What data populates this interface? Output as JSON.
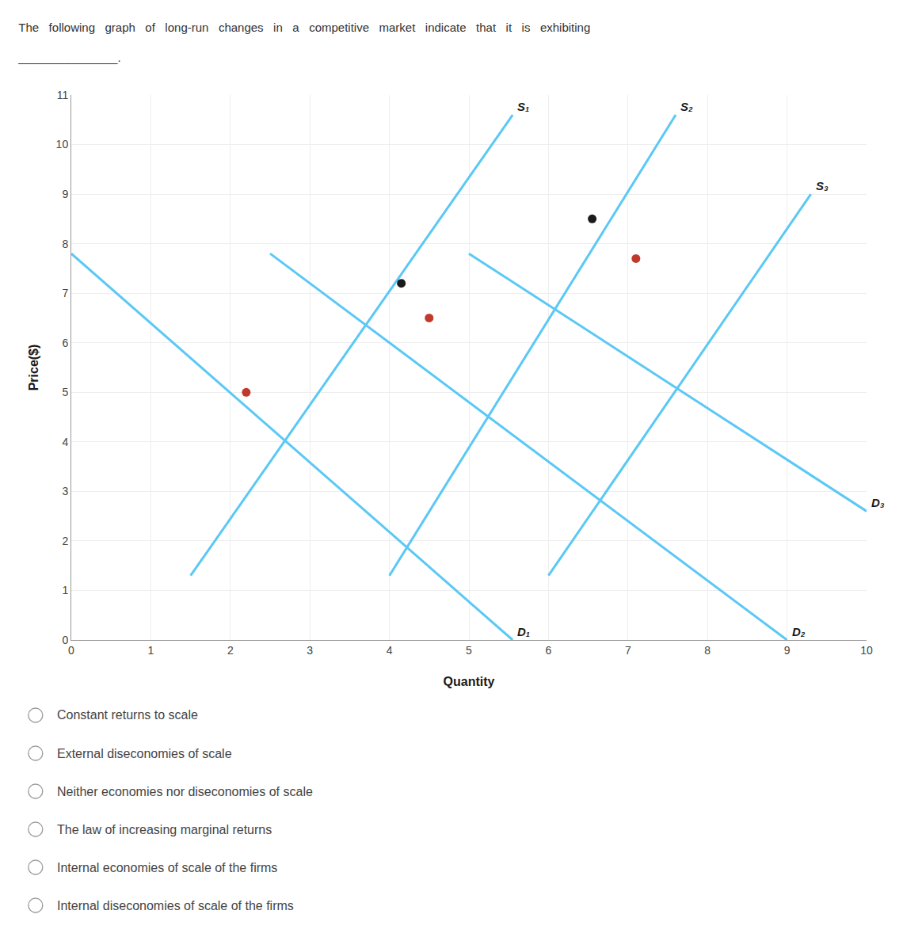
{
  "chart_data": {
    "type": "line",
    "title": "The   following   graph   of   long-run   changes   in   a   competitive   market   indicate   that   it   is   exhibiting",
    "subtitle": "_______________.",
    "x_label": "Quantity",
    "y_label": "Price($)",
    "xlim": [
      0,
      10
    ],
    "ylim": [
      0,
      11
    ],
    "xticks": [
      0,
      1,
      2,
      3,
      4,
      5,
      6,
      7,
      8,
      9,
      10
    ],
    "yticks": [
      0,
      1,
      2,
      3,
      4,
      5,
      6,
      7,
      8,
      9,
      10,
      11
    ],
    "grid": true,
    "series": [
      {
        "name": "S₁",
        "color": "#5BC8F5",
        "x": [
          1.5,
          5.55
        ],
        "values": [
          1.3,
          10.6
        ]
      },
      {
        "name": "S₂",
        "color": "#5BC8F5",
        "x": [
          4.0,
          7.6
        ],
        "values": [
          1.3,
          10.6
        ]
      },
      {
        "name": "S₃",
        "color": "#5BC8F5",
        "x": [
          6.0,
          9.3
        ],
        "values": [
          1.3,
          9.0
        ]
      },
      {
        "name": "D₁",
        "color": "#5BC8F5",
        "x": [
          0.0,
          5.55
        ],
        "values": [
          7.8,
          0.0
        ]
      },
      {
        "name": "D₂",
        "color": "#5BC8F5",
        "x": [
          2.5,
          9.0
        ],
        "values": [
          7.8,
          0.0
        ]
      },
      {
        "name": "D₃",
        "color": "#5BC8F5",
        "x": [
          5.0,
          10.0
        ],
        "values": [
          7.8,
          2.6
        ]
      },
      {
        "type": "scatter",
        "marker": "circle",
        "color": "#c0392b",
        "x": [
          2.2,
          4.5,
          7.1
        ],
        "values": [
          5.0,
          6.5,
          7.7
        ]
      },
      {
        "type": "scatter",
        "marker": "circle",
        "color": "#1a1a1a",
        "x": [
          4.15,
          6.55
        ],
        "values": [
          7.2,
          8.5
        ]
      }
    ],
    "annotations": [
      "Constant returns to scale",
      "External diseconomies of scale",
      "Neither economies nor diseconomies of scale",
      "The law of increasing marginal returns",
      "Internal economies of scale of the firms",
      "Internal diseconomies of scale of the firms"
    ]
  }
}
